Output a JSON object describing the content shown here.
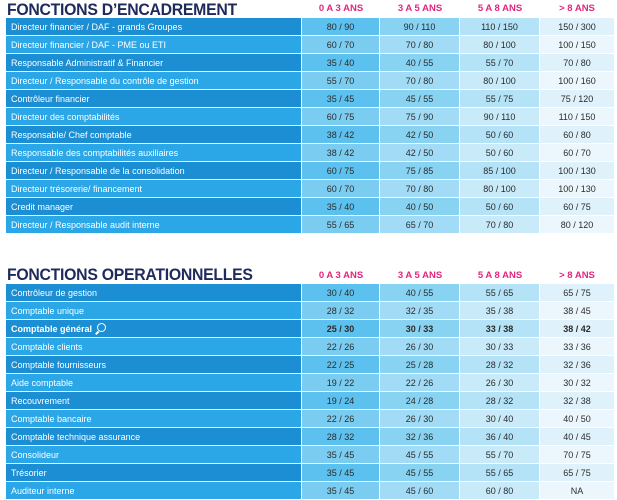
{
  "encadrement": {
    "title": "FONCTIONS D’ENCADREMENT",
    "columns": [
      "0 A 3 ANS",
      "3 A 5 ANS",
      "5 A 8 ANS",
      "> 8 ANS"
    ],
    "rows": [
      {
        "name": "Directeur financier / DAF - grands Groupes",
        "v": [
          "80 / 90",
          "90 / 110",
          "110 / 150",
          "150 / 300"
        ]
      },
      {
        "name": "Directeur financier / DAF - PME ou ETI",
        "v": [
          "60 / 70",
          "70 / 80",
          "80 / 100",
          "100 / 150"
        ]
      },
      {
        "name": "Responsable Administratif & Financier",
        "v": [
          "35 / 40",
          "40 / 55",
          "55 / 70",
          "70 / 80"
        ]
      },
      {
        "name": "Directeur / Responsable du contrôle de gestion",
        "v": [
          "55 / 70",
          "70 / 80",
          "80 / 100",
          "100 / 160"
        ]
      },
      {
        "name": "Contrôleur financier",
        "v": [
          "35 / 45",
          "45 / 55",
          "55 / 75",
          "75 / 120"
        ]
      },
      {
        "name": "Directeur des comptabilités",
        "v": [
          "60 / 75",
          "75 / 90",
          "90 / 110",
          "110 / 150"
        ]
      },
      {
        "name": "Responsable/ Chef comptable",
        "v": [
          "38 / 42",
          "42 / 50",
          "50 / 60",
          "60 / 80"
        ]
      },
      {
        "name": "Responsable des comptabilités auxiliaires",
        "v": [
          "38 / 42",
          "42 / 50",
          "50 / 60",
          "60 / 70"
        ]
      },
      {
        "name": "Directeur / Responsable de la consolidation",
        "v": [
          "60 / 75",
          "75 / 85",
          "85 / 100",
          "100 / 130"
        ]
      },
      {
        "name": "Directeur trésorerie/ financement",
        "v": [
          "60 / 70",
          "70 / 80",
          "80 / 100",
          "100 / 130"
        ]
      },
      {
        "name": "Credit manager",
        "v": [
          "35 / 40",
          "40 / 50",
          "50 / 60",
          "60 / 75"
        ]
      },
      {
        "name": "Directeur / Responsable audit interne",
        "v": [
          "55 / 65",
          "65 / 70",
          "70 / 80",
          "80 / 120"
        ]
      }
    ]
  },
  "operationnelles": {
    "title": "FONCTIONS OPERATIONNELLES",
    "columns": [
      "0 A 3 ANS",
      "3 A 5 ANS",
      "5 A 8 ANS",
      "> 8 ANS"
    ],
    "rows": [
      {
        "name": "Contrôleur de gestion",
        "v": [
          "30 / 40",
          "40 / 55",
          "55 / 65",
          "65 / 75"
        ]
      },
      {
        "name": "Comptable unique",
        "v": [
          "28 / 32",
          "32 / 35",
          "35 / 38",
          "38 / 45"
        ]
      },
      {
        "name": "Comptable général",
        "v": [
          "25 / 30",
          "30 / 33",
          "33 / 38",
          "38 / 42"
        ],
        "highlight": true
      },
      {
        "name": "Comptable clients",
        "v": [
          "22 / 26",
          "26 / 30",
          "30 / 33",
          "33 / 36"
        ]
      },
      {
        "name": "Comptable fournisseurs",
        "v": [
          "22 / 25",
          "25 / 28",
          "28 / 32",
          "32 / 36"
        ]
      },
      {
        "name": "Aide comptable",
        "v": [
          "19 / 22",
          "22 / 26",
          "26 / 30",
          "30 / 32"
        ]
      },
      {
        "name": "Recouvrement",
        "v": [
          "19 / 24",
          "24 / 28",
          "28 / 32",
          "32 / 38"
        ]
      },
      {
        "name": "Comptable bancaire",
        "v": [
          "22 / 26",
          "26 / 30",
          "30 / 40",
          "40 / 50"
        ]
      },
      {
        "name": "Comptable technique assurance",
        "v": [
          "28 / 32",
          "32 / 36",
          "36 / 40",
          "40 / 45"
        ]
      },
      {
        "name": "Consolideur",
        "v": [
          "35 / 45",
          "45 / 55",
          "55 / 70",
          "70 / 75"
        ]
      },
      {
        "name": "Trésorier",
        "v": [
          "35 / 45",
          "45 / 55",
          "55 / 65",
          "65 / 75"
        ]
      },
      {
        "name": "Auditeur interne",
        "v": [
          "35 / 45",
          "45 / 60",
          "60 / 80",
          "NA"
        ]
      }
    ]
  },
  "icons": {
    "highlight_marker": "search-icon"
  },
  "colors": {
    "title": "#1f2a5c",
    "column_header": "#e2267d",
    "name_cell": "#1c8ed3"
  }
}
